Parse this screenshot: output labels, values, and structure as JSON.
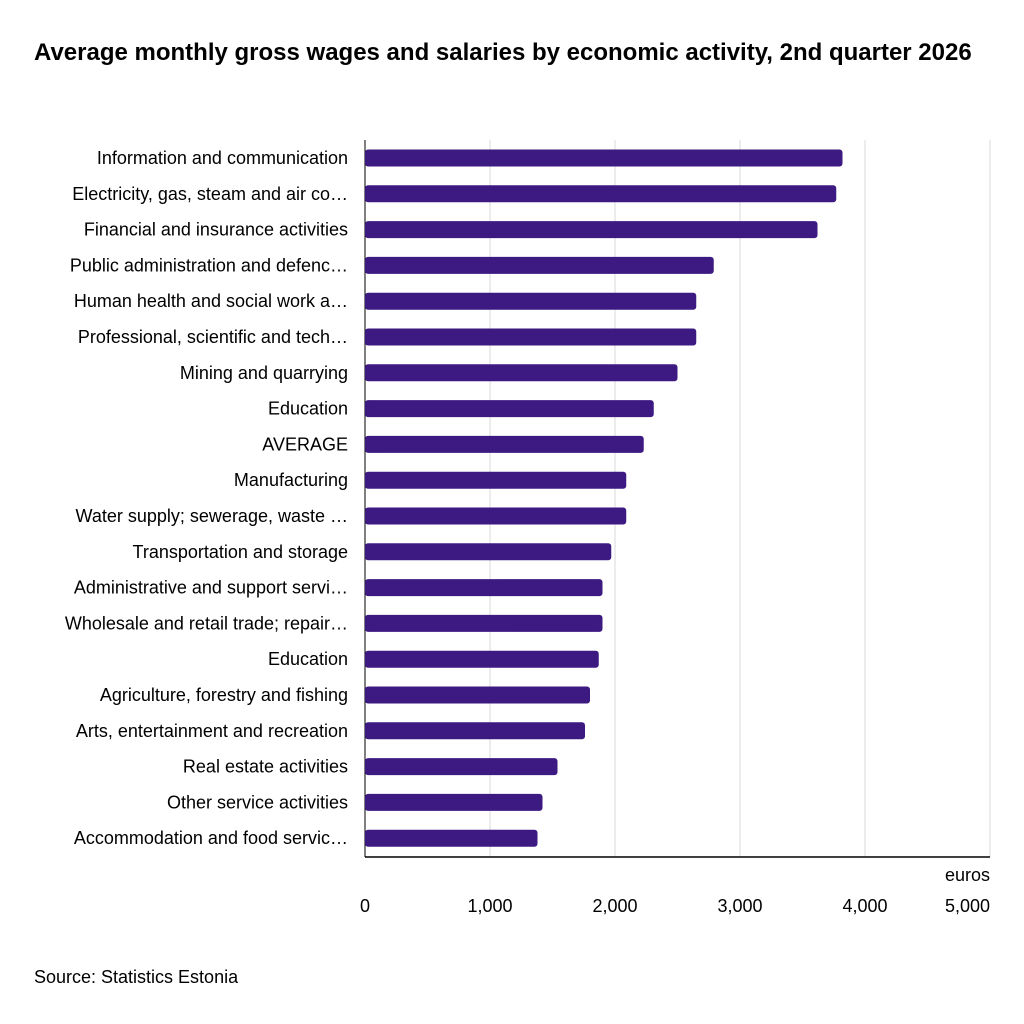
{
  "chart_data": {
    "type": "bar",
    "orientation": "horizontal",
    "title": "Average monthly gross wages and salaries by economic activity, 2nd quarter 2026",
    "xlabel": "euros",
    "ylabel": "",
    "xlim": [
      0,
      5000
    ],
    "xticks": [
      "0",
      "1,000",
      "2,000",
      "3,000",
      "4,000",
      "5,000"
    ],
    "grid": true,
    "legend": "none",
    "bar_color": "#3d1a82",
    "categories": [
      "Information and communication",
      "Electricity, gas, steam and air co…",
      "Financial and insurance activities",
      "Public administration and defenc…",
      "Human health and social work a…",
      "Professional, scientific and tech…",
      "Mining and quarrying",
      "Education",
      "AVERAGE",
      "Manufacturing",
      "Water supply; sewerage, waste …",
      "Transportation and storage",
      "Administrative and support servi…",
      "Wholesale and retail trade; repair…",
      "Education",
      "Agriculture, forestry and fishing",
      "Arts, entertainment and recreation",
      "Real estate activities",
      "Other service activities",
      "Accommodation and food servic…"
    ],
    "values": [
      3820,
      3770,
      3620,
      2790,
      2650,
      2650,
      2500,
      2310,
      2230,
      2090,
      2090,
      1970,
      1900,
      1900,
      1870,
      1800,
      1760,
      1540,
      1420,
      1380
    ]
  },
  "source": "Source: Statistics Estonia"
}
